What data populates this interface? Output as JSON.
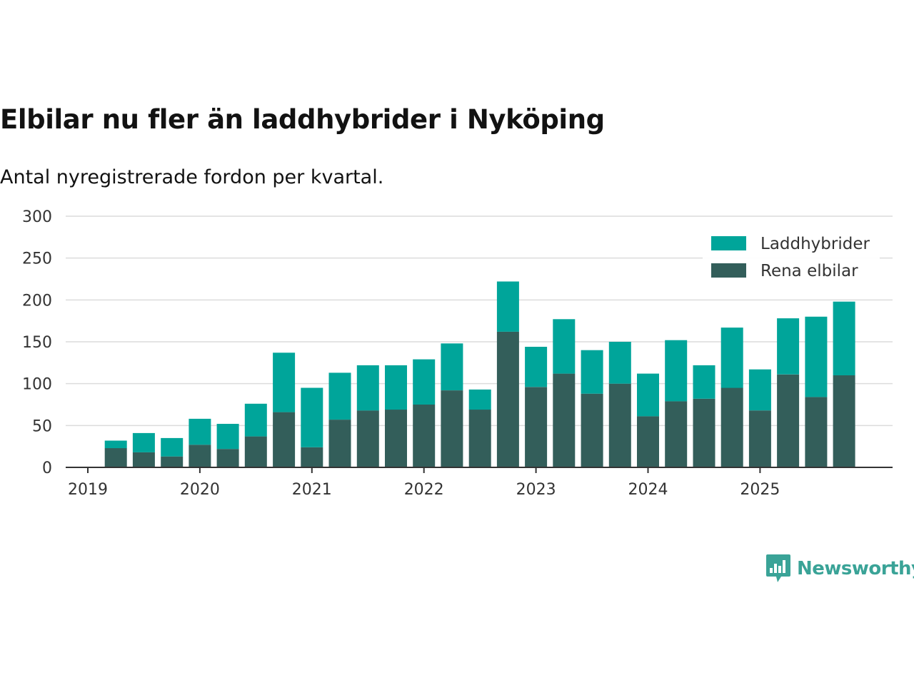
{
  "title": "Elbilar nu fler än laddhybrider i Nyköping",
  "subtitle": "Antal nyregistrerade fordon per kvartal.",
  "brand": "Newsworthy",
  "colors": {
    "laddhybrider": "#00a59a",
    "rena_elbilar": "#335e5a",
    "grid": "#dcdcdc",
    "axis": "#333333",
    "brand": "#3aa397"
  },
  "chart_data": {
    "type": "bar",
    "stacked": true,
    "title": "Elbilar nu fler än laddhybrider i Nyköping",
    "subtitle": "Antal nyregistrerade fordon per kvartal.",
    "xlabel": "",
    "ylabel": "",
    "ylim": [
      0,
      300
    ],
    "yticks": [
      0,
      50,
      100,
      150,
      200,
      250,
      300
    ],
    "xtick_labels": [
      "2019",
      "2020",
      "2021",
      "2022",
      "2023",
      "2024",
      "2025"
    ],
    "legend_position": "top-right",
    "categories": [
      "2019 Q2",
      "2019 Q3",
      "2019 Q4",
      "2020 Q1",
      "2020 Q2",
      "2020 Q3",
      "2020 Q4",
      "2021 Q1",
      "2021 Q2",
      "2021 Q3",
      "2021 Q4",
      "2022 Q1",
      "2022 Q2",
      "2022 Q3",
      "2022 Q4",
      "2023 Q1",
      "2023 Q2",
      "2023 Q3",
      "2023 Q4",
      "2024 Q1",
      "2024 Q2",
      "2024 Q3",
      "2024 Q4",
      "2025 Q1",
      "2025 Q2",
      "2025 Q3",
      "2025 Q4"
    ],
    "series": [
      {
        "name": "Rena elbilar",
        "color": "#335e5a",
        "values": [
          23,
          18,
          13,
          27,
          22,
          37,
          66,
          24,
          57,
          68,
          69,
          75,
          92,
          69,
          162,
          96,
          112,
          88,
          100,
          61,
          79,
          82,
          95,
          68,
          111,
          84,
          110
        ]
      },
      {
        "name": "Laddhybrider",
        "color": "#00a59a",
        "values": [
          9,
          23,
          22,
          31,
          30,
          39,
          71,
          71,
          56,
          54,
          53,
          54,
          56,
          24,
          60,
          48,
          65,
          52,
          50,
          51,
          73,
          40,
          72,
          49,
          67,
          96,
          88
        ]
      }
    ]
  }
}
